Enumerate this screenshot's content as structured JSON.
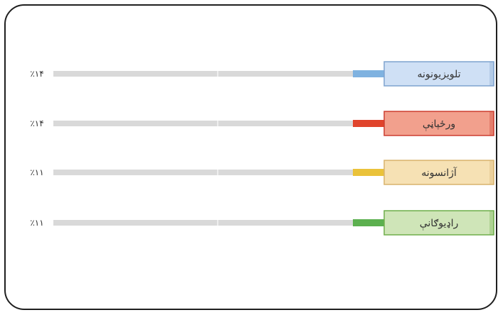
{
  "chart_data": {
    "type": "bar",
    "orientation": "horizontal",
    "categories": [
      "تلویزیونونه",
      "ورځپاڼې",
      "آژانسونه",
      "راډیوګانې"
    ],
    "values": [
      14,
      14,
      11,
      11
    ],
    "value_labels": [
      "٪۱۴",
      "٪۱۴",
      "٪۱۱",
      "٪۱۱"
    ],
    "colors": [
      "#7fb2e0",
      "#e0442c",
      "#eac23a",
      "#5cb04f"
    ],
    "label_bg": [
      "#cfe0f5",
      "#f2a08d",
      "#f6e1b4",
      "#cfe5b8"
    ],
    "label_border": [
      "#7ea3cf",
      "#cc3e30",
      "#d8b36c",
      "#6fae4a"
    ],
    "track_color": "#d9d9d9"
  }
}
